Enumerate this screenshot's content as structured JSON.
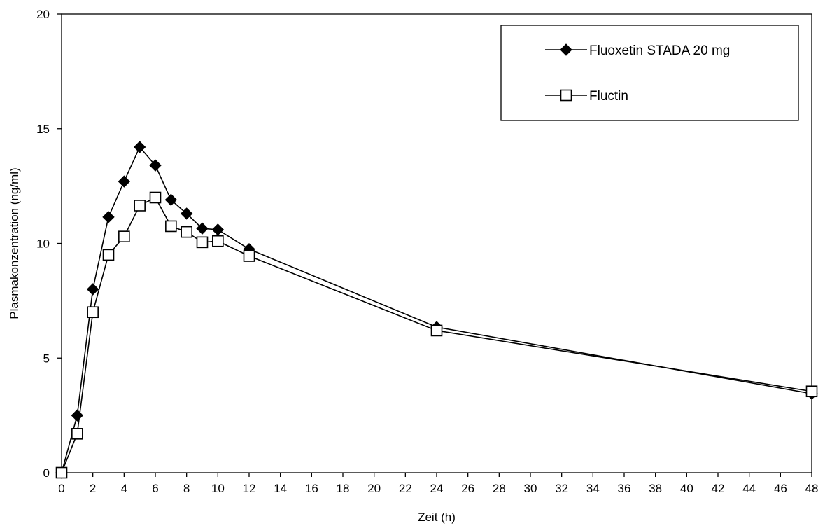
{
  "chart_data": {
    "type": "line",
    "title": "",
    "xlabel": "Zeit (h)",
    "ylabel": "Plasmakonzentration (ng/ml)",
    "xlim": [
      0,
      48
    ],
    "ylim": [
      0,
      20
    ],
    "x_ticks": [
      0,
      2,
      4,
      6,
      8,
      10,
      12,
      14,
      16,
      18,
      20,
      22,
      24,
      26,
      28,
      30,
      32,
      34,
      36,
      38,
      40,
      42,
      44,
      46,
      48
    ],
    "y_ticks": [
      0,
      5,
      10,
      15,
      20
    ],
    "grid": false,
    "legend_position": "top-right",
    "series": [
      {
        "name": "Fluoxetin STADA 20 mg",
        "marker": "filled-diamond",
        "color": "#000000",
        "x": [
          0,
          1,
          2,
          3,
          4,
          5,
          6,
          7,
          8,
          9,
          10,
          12,
          24,
          48
        ],
        "y": [
          0,
          2.5,
          8.0,
          11.15,
          12.7,
          14.2,
          13.4,
          11.9,
          11.3,
          10.65,
          10.6,
          9.75,
          6.35,
          3.45
        ]
      },
      {
        "name": "Fluctin",
        "marker": "open-square",
        "color": "#000000",
        "x": [
          0,
          1,
          2,
          3,
          4,
          5,
          6,
          7,
          8,
          9,
          10,
          12,
          24,
          48
        ],
        "y": [
          0,
          1.7,
          7.0,
          9.5,
          10.3,
          11.65,
          12.0,
          10.75,
          10.5,
          10.05,
          10.1,
          9.45,
          6.2,
          3.55
        ]
      }
    ]
  }
}
